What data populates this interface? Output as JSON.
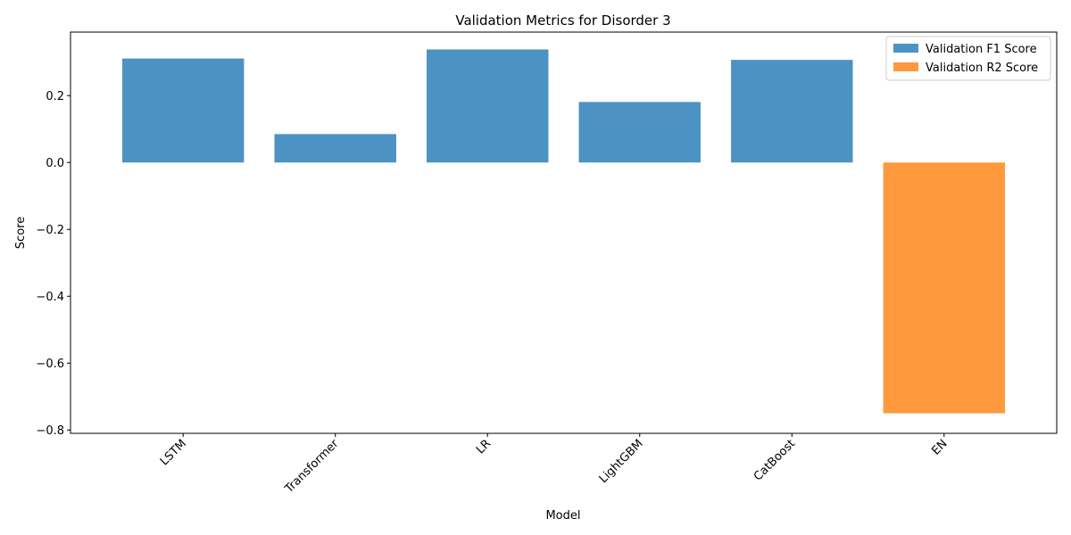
{
  "chart_data": {
    "type": "bar",
    "title": "Validation Metrics for Disorder 3",
    "xlabel": "Model",
    "ylabel": "Score",
    "categories": [
      "LSTM",
      "Transformer",
      "LR",
      "LightGBM",
      "CatBoost",
      "EN"
    ],
    "series": [
      {
        "name": "Validation F1 Score",
        "color": "#1f77b4",
        "values": [
          0.311,
          0.085,
          0.338,
          0.181,
          0.307,
          null
        ]
      },
      {
        "name": "Validation R2 Score",
        "color": "#ff7f0e",
        "values": [
          null,
          null,
          null,
          null,
          null,
          -0.75
        ]
      }
    ],
    "ylim": [
      -0.81,
      0.39
    ],
    "yticks": [
      0.2,
      0.0,
      -0.2,
      -0.4,
      -0.6,
      -0.8
    ],
    "ytick_labels": [
      "0.2",
      "0.0",
      "−0.2",
      "−0.4",
      "−0.6",
      "−0.8"
    ],
    "xtick_rotation": 45,
    "grid": false,
    "legend": "top-right"
  }
}
